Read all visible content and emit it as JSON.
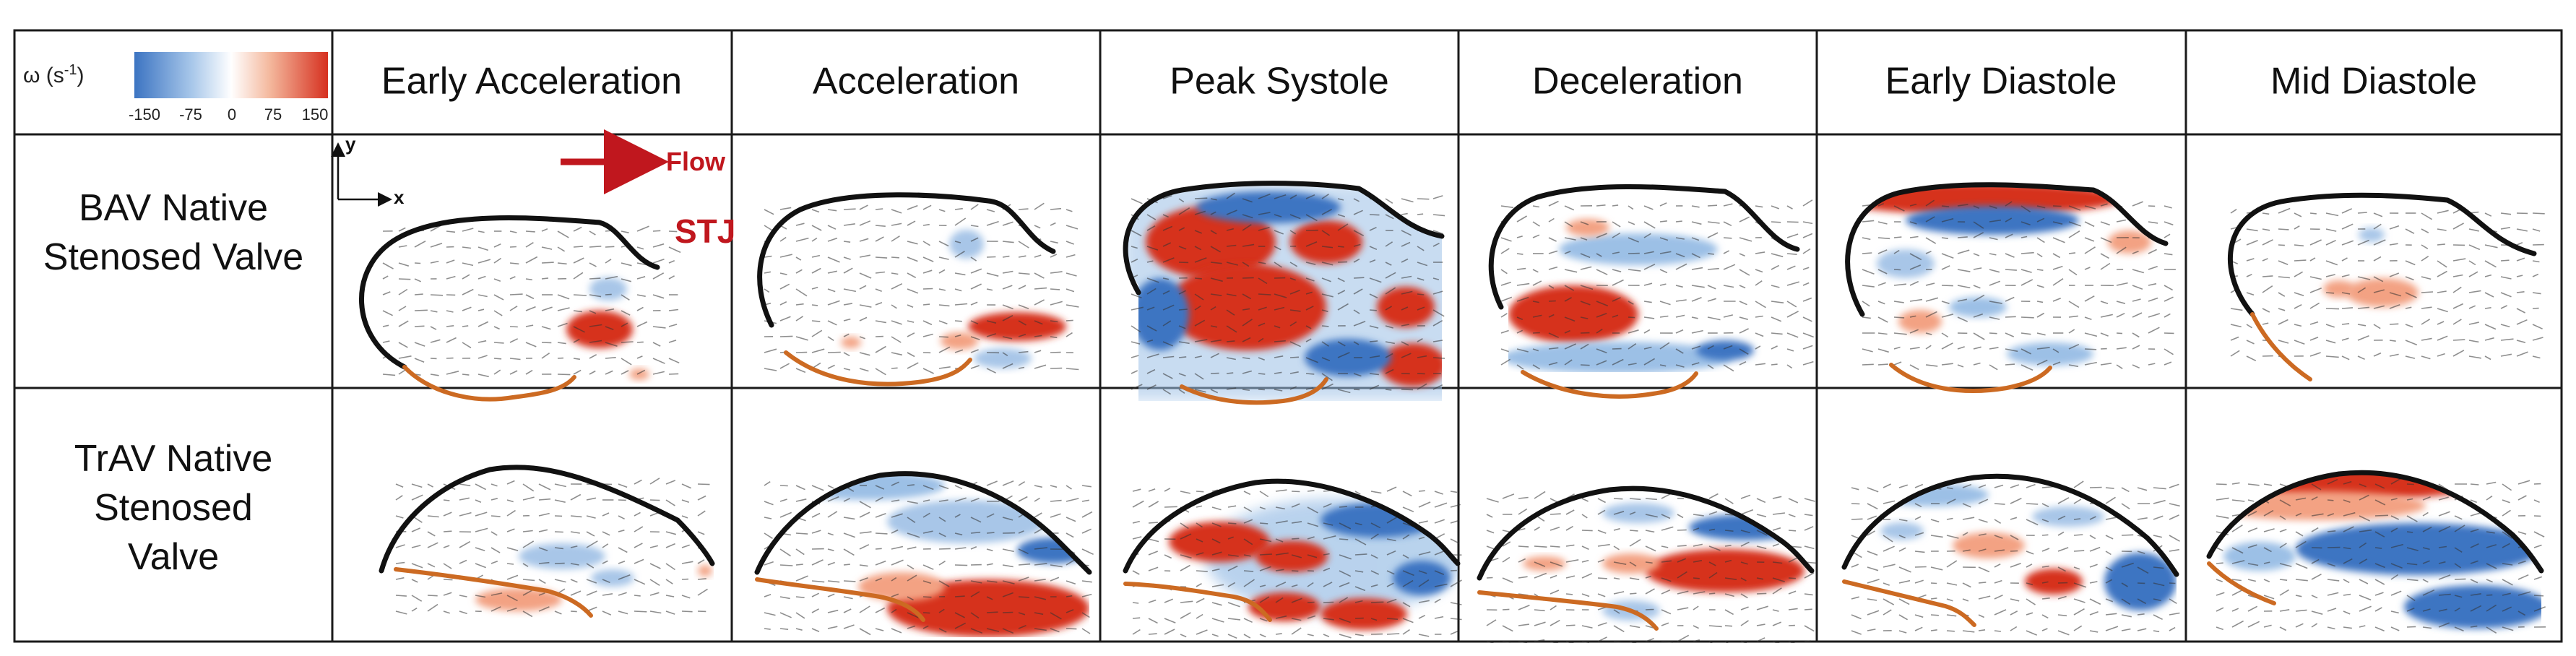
{
  "colorbar": {
    "symbol": "ω (s",
    "exponent": "-1",
    "close": ")",
    "ticks": [
      "-150",
      "-75",
      "0",
      "75",
      "150"
    ],
    "colors": [
      "#3c74c2",
      "#9cc0e6",
      "#ffffff",
      "#f3b79a",
      "#d6301f"
    ]
  },
  "columns": [
    {
      "key": "early-acceleration",
      "label": "Early Acceleration"
    },
    {
      "key": "acceleration",
      "label": "Acceleration"
    },
    {
      "key": "peak-systole",
      "label": "Peak Systole"
    },
    {
      "key": "deceleration",
      "label": "Deceleration"
    },
    {
      "key": "early-diastole",
      "label": "Early Diastole"
    },
    {
      "key": "mid-diastole",
      "label": "Mid Diastole"
    }
  ],
  "rows": [
    {
      "key": "bav",
      "lines": [
        "BAV Native",
        "Stenosed Valve"
      ]
    },
    {
      "key": "trav",
      "lines": [
        "TrAV Native",
        "Stenosed",
        "Valve"
      ]
    }
  ],
  "annotations": {
    "flow": "Flow",
    "stj": "STJ",
    "axis_x": "x",
    "axis_y": "y"
  },
  "colors": {
    "positive": "#d6301f",
    "positive_light": "#f3a283",
    "negative": "#3c74c2",
    "negative_light": "#a8c6e8",
    "wall": "#111111",
    "leaflet": "#cc6a22",
    "annotation": "#c0171e"
  }
}
